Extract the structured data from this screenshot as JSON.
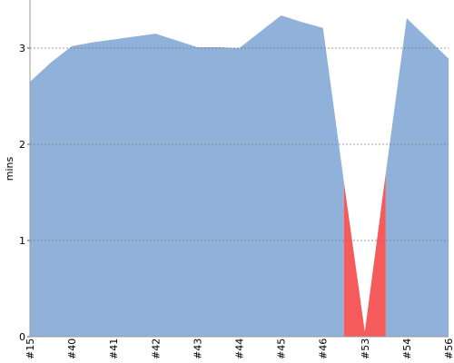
{
  "chart_data": {
    "type": "area",
    "y_label": "mins",
    "categories": [
      "#15",
      null,
      "#40",
      null,
      "#41",
      null,
      "#42",
      null,
      "#43",
      null,
      "#44",
      null,
      "#45",
      null,
      "#46",
      null,
      "#53",
      null,
      "#54",
      null,
      "#56"
    ],
    "series": [
      {
        "color": "#8fb1da",
        "values": [
          2.65,
          2.85,
          3.02,
          3.06,
          3.09,
          3.12,
          3.15,
          3.08,
          3.01,
          3.01,
          3.0,
          3.17,
          3.34,
          3.27,
          3.21,
          1.61,
          null,
          1.7,
          3.31,
          3.1,
          2.89
        ]
      },
      {
        "color": "#f55b5b",
        "values": [
          null,
          null,
          null,
          null,
          null,
          null,
          null,
          null,
          null,
          null,
          null,
          null,
          null,
          null,
          null,
          1.61,
          0.05,
          1.7,
          null,
          null,
          null
        ]
      }
    ],
    "ylim": [
      0,
      3.5
    ],
    "yticks": [
      0,
      1,
      2,
      3
    ],
    "grid": true
  }
}
